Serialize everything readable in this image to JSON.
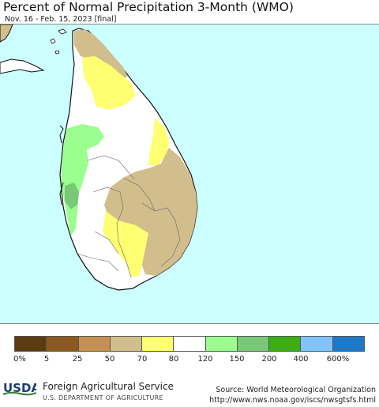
{
  "header": {
    "title": "Percent of Normal Precipitation 3-Month (WMO)",
    "subtitle": "Nov. 16 - Feb. 15, 2023 [final]"
  },
  "map": {
    "region": "Sri Lanka",
    "ocean_color": "#ccffff",
    "land_outline_color": "#111111"
  },
  "legend": {
    "labels": [
      "0%",
      "5",
      "25",
      "50",
      "70",
      "80",
      "120",
      "150",
      "200",
      "400",
      "600%"
    ],
    "colors": [
      "#5b3c11",
      "#8b5a1e",
      "#c49150",
      "#d2bd8c",
      "#ffff72",
      "#ffffff",
      "#9aff8f",
      "#78c878",
      "#3bae15",
      "#7fc4ff",
      "#1e78c8"
    ]
  },
  "footer": {
    "logo_text": "USDA",
    "agency": "Foreign Agricultural Service",
    "department": "U.S. DEPARTMENT OF AGRICULTURE",
    "source_line1": "Source: World Meteorological Organization",
    "source_line2": "http://www.nws.noaa.gov/iscs/nwsgtsfs.html"
  }
}
